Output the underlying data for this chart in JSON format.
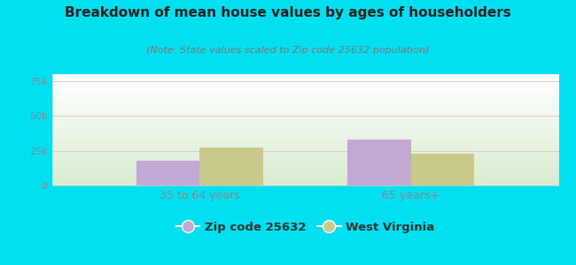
{
  "title": "Breakdown of mean house values by ages of householders",
  "subtitle": "(Note: State values scaled to Zip code 25632 population)",
  "categories": [
    "35 to 64 years",
    "65 years+"
  ],
  "zip_values": [
    18000,
    33000
  ],
  "state_values": [
    27000,
    23000
  ],
  "zip_color": "#c4a8d4",
  "state_color": "#c8c98a",
  "ylim": [
    0,
    80000
  ],
  "yticks": [
    0,
    25000,
    50000,
    75000
  ],
  "ytick_labels": [
    "0",
    "25k",
    "50k",
    "75k"
  ],
  "bg_top_color": "#ffffff",
  "bg_bottom_color": "#d8ecd0",
  "outer_bg": "#00e0f0",
  "legend_zip_label": "Zip code 25632",
  "legend_state_label": "West Virginia",
  "title_fontsize": 11,
  "subtitle_fontsize": 8,
  "tick_label_color": "#888888",
  "grid_color": "#e8c8c8",
  "bar_width": 0.3
}
